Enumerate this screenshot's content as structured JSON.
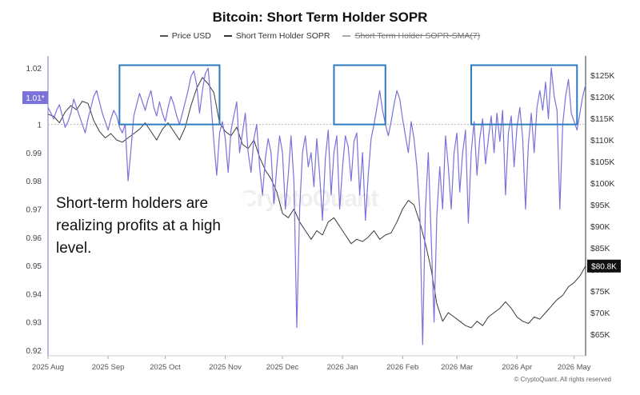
{
  "chart_data": {
    "title": "Bitcoin: Short Term Holder SOPR",
    "legend": [
      {
        "label": "Price USD",
        "color": "#555555",
        "hidden": false
      },
      {
        "label": "Short Term Holder SOPR",
        "color": "#333333",
        "hidden": false
      },
      {
        "label": "Short Term Holder SOPR-SMA(7)",
        "color": "#aaaaaa",
        "hidden": true
      }
    ],
    "x_ticks": [
      "2025 Aug",
      "2025 Sep",
      "2025 Oct",
      "2025 Nov",
      "2025 Dec",
      "2026 Jan",
      "2026 Feb",
      "2026 Mar",
      "2026 Apr",
      "2026 May"
    ],
    "y_left_ticks": [
      "1.02",
      "1.01",
      "1",
      "0.99",
      "0.98",
      "0.97",
      "0.96",
      "0.95",
      "0.94",
      "0.93",
      "0.92"
    ],
    "y_right_ticks": [
      "$125K",
      "$120K",
      "$115K",
      "$110K",
      "$105K",
      "$100K",
      "$95K",
      "$90K",
      "$85K",
      "$80K",
      "$75K",
      "$70K",
      "$65K"
    ],
    "y_left_range": [
      0.92,
      1.02
    ],
    "current_sopr_label": "1.01*",
    "current_price_label": "$80.8K",
    "annotation": "Short-term holders are realizing profits at a high level.",
    "copyright": "© CryptoQuant. All rights reserved",
    "watermark": "CryptoQuant",
    "sopr_color": "#7b72d9",
    "price_color": "#3a3a3a",
    "highlight_color": "#2f7bbf",
    "highlights": [
      {
        "start": "2025 Sep",
        "end": "2025 Oct",
        "sopr_min": 1.0,
        "sopr_max": 1.021
      },
      {
        "start": "2026 Jan",
        "end": "2026 Jan",
        "sopr_min": 1.0,
        "sopr_max": 1.021
      },
      {
        "start": "2026 Mar",
        "end": "2026 May",
        "sopr_min": 1.0,
        "sopr_max": 1.021
      }
    ],
    "sopr_series": [
      [
        0.0,
        1.006
      ],
      [
        1.0,
        1.004
      ],
      [
        2.0,
        1.002
      ],
      [
        3.0,
        1.005
      ],
      [
        4.0,
        1.007
      ],
      [
        5.0,
        1.003
      ],
      [
        6.0,
        0.999
      ],
      [
        7.0,
        1.001
      ],
      [
        8.0,
        1.004
      ],
      [
        9.0,
        1.009
      ],
      [
        10.0,
        1.006
      ],
      [
        11.0,
        1.003
      ],
      [
        12.0,
        1.0
      ],
      [
        13.0,
        0.997
      ],
      [
        14.0,
        1.002
      ],
      [
        15.0,
        1.006
      ],
      [
        16.0,
        1.01
      ],
      [
        17.0,
        1.012
      ],
      [
        18.0,
        1.008
      ],
      [
        19.0,
        1.004
      ],
      [
        20.0,
        1.001
      ],
      [
        21.0,
        0.998
      ],
      [
        22.0,
        1.002
      ],
      [
        23.0,
        1.005
      ],
      [
        24.0,
        1.003
      ],
      [
        25.0,
        0.999
      ],
      [
        26.0,
        0.997
      ],
      [
        27.0,
        1.0
      ],
      [
        28.0,
        0.98
      ],
      [
        29.0,
        0.991
      ],
      [
        30.0,
        1.003
      ],
      [
        31.0,
        1.007
      ],
      [
        32.0,
        1.011
      ],
      [
        33.0,
        1.008
      ],
      [
        34.0,
        1.005
      ],
      [
        35.0,
        1.009
      ],
      [
        36.0,
        1.012
      ],
      [
        37.0,
        1.006
      ],
      [
        38.0,
        1.003
      ],
      [
        39.0,
        1.008
      ],
      [
        40.0,
        1.004
      ],
      [
        41.0,
        1.001
      ],
      [
        42.0,
        1.006
      ],
      [
        43.0,
        1.01
      ],
      [
        44.0,
        1.007
      ],
      [
        45.0,
        1.003
      ],
      [
        46.0,
        1.0
      ],
      [
        47.0,
        1.004
      ],
      [
        48.0,
        1.008
      ],
      [
        49.0,
        1.012
      ],
      [
        50.0,
        1.017
      ],
      [
        51.0,
        1.019
      ],
      [
        52.0,
        1.014
      ],
      [
        53.0,
        1.004
      ],
      [
        54.0,
        1.012
      ],
      [
        55.0,
        1.018
      ],
      [
        56.0,
        1.02
      ],
      [
        57.0,
        1.008
      ],
      [
        58.0,
        0.994
      ],
      [
        59.0,
        0.982
      ],
      [
        60.0,
        0.997
      ],
      [
        61.0,
        1.001
      ],
      [
        62.0,
        0.995
      ],
      [
        63.0,
        0.983
      ],
      [
        64.0,
        0.998
      ],
      [
        65.0,
        1.003
      ],
      [
        66.0,
        1.008
      ],
      [
        67.0,
        0.99
      ],
      [
        68.0,
        0.997
      ],
      [
        69.0,
        1.004
      ],
      [
        70.0,
        0.99
      ],
      [
        71.0,
        0.983
      ],
      [
        72.0,
        0.995
      ],
      [
        73.0,
        1.0
      ],
      [
        74.0,
        0.985
      ],
      [
        75.0,
        0.975
      ],
      [
        76.0,
        0.988
      ],
      [
        77.0,
        0.995
      ],
      [
        78.0,
        0.99
      ],
      [
        79.0,
        0.972
      ],
      [
        80.0,
        0.985
      ],
      [
        81.0,
        0.996
      ],
      [
        82.0,
        0.99
      ],
      [
        83.0,
        0.97
      ],
      [
        84.0,
        0.982
      ],
      [
        85.0,
        0.996
      ],
      [
        86.0,
        0.98
      ],
      [
        87.0,
        0.928
      ],
      [
        88.0,
        0.97
      ],
      [
        89.0,
        0.99
      ],
      [
        90.0,
        0.996
      ],
      [
        91.0,
        0.985
      ],
      [
        92.0,
        0.99
      ],
      [
        93.0,
        0.978
      ],
      [
        94.0,
        0.995
      ],
      [
        95.0,
        0.982
      ],
      [
        96.0,
        0.966
      ],
      [
        97.0,
        0.988
      ],
      [
        98.0,
        0.998
      ],
      [
        99.0,
        0.975
      ],
      [
        100.0,
        0.99
      ],
      [
        101.0,
        0.996
      ],
      [
        102.0,
        0.97
      ],
      [
        103.0,
        0.985
      ],
      [
        104.0,
        0.996
      ],
      [
        105.0,
        0.992
      ],
      [
        106.0,
        0.98
      ],
      [
        107.0,
        0.994
      ],
      [
        108.0,
        0.997
      ],
      [
        109.0,
        0.975
      ],
      [
        110.0,
        0.99
      ],
      [
        111.0,
        0.966
      ],
      [
        112.0,
        0.982
      ],
      [
        113.0,
        0.995
      ],
      [
        114.0,
        1.0
      ],
      [
        115.0,
        1.006
      ],
      [
        116.0,
        1.012
      ],
      [
        117.0,
        1.005
      ],
      [
        118.0,
        1.0
      ],
      [
        119.0,
        0.996
      ],
      [
        120.0,
        1.001
      ],
      [
        121.0,
        1.007
      ],
      [
        122.0,
        1.012
      ],
      [
        123.0,
        1.009
      ],
      [
        124.0,
        1.002
      ],
      [
        125.0,
        0.996
      ],
      [
        126.0,
        0.99
      ],
      [
        127.0,
        1.001
      ],
      [
        128.0,
        0.995
      ],
      [
        129.0,
        0.985
      ],
      [
        130.0,
        0.97
      ],
      [
        131.0,
        0.922
      ],
      [
        132.0,
        0.97
      ],
      [
        133.0,
        0.99
      ],
      [
        134.0,
        0.96
      ],
      [
        135.0,
        0.93
      ],
      [
        136.0,
        0.968
      ],
      [
        137.0,
        0.985
      ],
      [
        138.0,
        0.97
      ],
      [
        139.0,
        0.996
      ],
      [
        140.0,
        0.985
      ],
      [
        141.0,
        0.97
      ],
      [
        142.0,
        0.99
      ],
      [
        143.0,
        0.997
      ],
      [
        144.0,
        0.976
      ],
      [
        145.0,
        0.99
      ],
      [
        146.0,
        0.998
      ],
      [
        147.0,
        0.965
      ],
      [
        148.0,
        0.99
      ],
      [
        149.0,
        1.001
      ],
      [
        150.0,
        0.982
      ],
      [
        151.0,
        0.995
      ],
      [
        152.0,
        1.002
      ],
      [
        153.0,
        0.986
      ],
      [
        154.0,
        0.995
      ],
      [
        155.0,
        1.003
      ],
      [
        156.0,
        0.99
      ],
      [
        157.0,
        1.004
      ],
      [
        158.0,
        0.994
      ],
      [
        159.0,
        1.005
      ],
      [
        160.0,
        0.975
      ],
      [
        161.0,
        0.997
      ],
      [
        162.0,
        1.003
      ],
      [
        163.0,
        0.985
      ],
      [
        164.0,
        0.999
      ],
      [
        165.0,
        1.006
      ],
      [
        166.0,
        0.995
      ],
      [
        167.0,
        0.97
      ],
      [
        168.0,
        0.993
      ],
      [
        169.0,
        1.004
      ],
      [
        170.0,
        0.99
      ],
      [
        171.0,
        1.006
      ],
      [
        172.0,
        1.012
      ],
      [
        173.0,
        1.005
      ],
      [
        174.0,
        1.015
      ],
      [
        175.0,
        1.002
      ],
      [
        176.0,
        1.02
      ],
      [
        177.0,
        1.01
      ],
      [
        178.0,
        1.005
      ],
      [
        179.0,
        0.97
      ],
      [
        180.0,
        1.0
      ],
      [
        181.0,
        1.01
      ],
      [
        182.0,
        1.016
      ],
      [
        183.0,
        1.004
      ],
      [
        184.0,
        1.001
      ],
      [
        185.0,
        0.998
      ],
      [
        186.0,
        1.004
      ],
      [
        187.0,
        1.01
      ],
      [
        188.0,
        1.014
      ]
    ],
    "price_series": [
      [
        0.0,
        116
      ],
      [
        2.0,
        115.5
      ],
      [
        4.0,
        114
      ],
      [
        6.0,
        116.5
      ],
      [
        8.0,
        118
      ],
      [
        10.0,
        117
      ],
      [
        12.0,
        119
      ],
      [
        14.0,
        118.5
      ],
      [
        16.0,
        114.5
      ],
      [
        18.0,
        112
      ],
      [
        20.0,
        110.5
      ],
      [
        22.0,
        111.5
      ],
      [
        24.0,
        110
      ],
      [
        26.0,
        109.5
      ],
      [
        28.0,
        110.5
      ],
      [
        30.0,
        111.5
      ],
      [
        32.0,
        112.5
      ],
      [
        34.0,
        114
      ],
      [
        36.0,
        112
      ],
      [
        38.0,
        110
      ],
      [
        40.0,
        112.5
      ],
      [
        42.0,
        114
      ],
      [
        44.0,
        112
      ],
      [
        46.0,
        110
      ],
      [
        48.0,
        113
      ],
      [
        50.0,
        118
      ],
      [
        52.0,
        122
      ],
      [
        54.0,
        124.5
      ],
      [
        56.0,
        123
      ],
      [
        58.0,
        121
      ],
      [
        60.0,
        114
      ],
      [
        62.0,
        112
      ],
      [
        64.0,
        111
      ],
      [
        66.0,
        113
      ],
      [
        68.0,
        109
      ],
      [
        70.0,
        108
      ],
      [
        72.0,
        110
      ],
      [
        74.0,
        106
      ],
      [
        76.0,
        103
      ],
      [
        78.0,
        101
      ],
      [
        80.0,
        98
      ],
      [
        82.0,
        93
      ],
      [
        84.0,
        92
      ],
      [
        86.0,
        94
      ],
      [
        88.0,
        91
      ],
      [
        90.0,
        89
      ],
      [
        92.0,
        87
      ],
      [
        94.0,
        89
      ],
      [
        96.0,
        88
      ],
      [
        98.0,
        91
      ],
      [
        100.0,
        92
      ],
      [
        102.0,
        90
      ],
      [
        104.0,
        88
      ],
      [
        106.0,
        86
      ],
      [
        108.0,
        87
      ],
      [
        110.0,
        86.5
      ],
      [
        112.0,
        87.5
      ],
      [
        114.0,
        89
      ],
      [
        116.0,
        87
      ],
      [
        118.0,
        88
      ],
      [
        120.0,
        88.5
      ],
      [
        122.0,
        91
      ],
      [
        124.0,
        94
      ],
      [
        126.0,
        96
      ],
      [
        128.0,
        95
      ],
      [
        130.0,
        91
      ],
      [
        132.0,
        86
      ],
      [
        134.0,
        80
      ],
      [
        136.0,
        72
      ],
      [
        138.0,
        68
      ],
      [
        140.0,
        70
      ],
      [
        142.0,
        69
      ],
      [
        144.0,
        68
      ],
      [
        146.0,
        67
      ],
      [
        148.0,
        66.5
      ],
      [
        150.0,
        68
      ],
      [
        152.0,
        67
      ],
      [
        154.0,
        69
      ],
      [
        156.0,
        70
      ],
      [
        158.0,
        71
      ],
      [
        160.0,
        72.5
      ],
      [
        162.0,
        71
      ],
      [
        164.0,
        69
      ],
      [
        166.0,
        68
      ],
      [
        168.0,
        67.5
      ],
      [
        170.0,
        69
      ],
      [
        172.0,
        68.5
      ],
      [
        174.0,
        70
      ],
      [
        176.0,
        71.5
      ],
      [
        178.0,
        73
      ],
      [
        180.0,
        74
      ],
      [
        182.0,
        76
      ],
      [
        184.0,
        77
      ],
      [
        186.0,
        78.5
      ],
      [
        188.0,
        80.8
      ]
    ]
  }
}
